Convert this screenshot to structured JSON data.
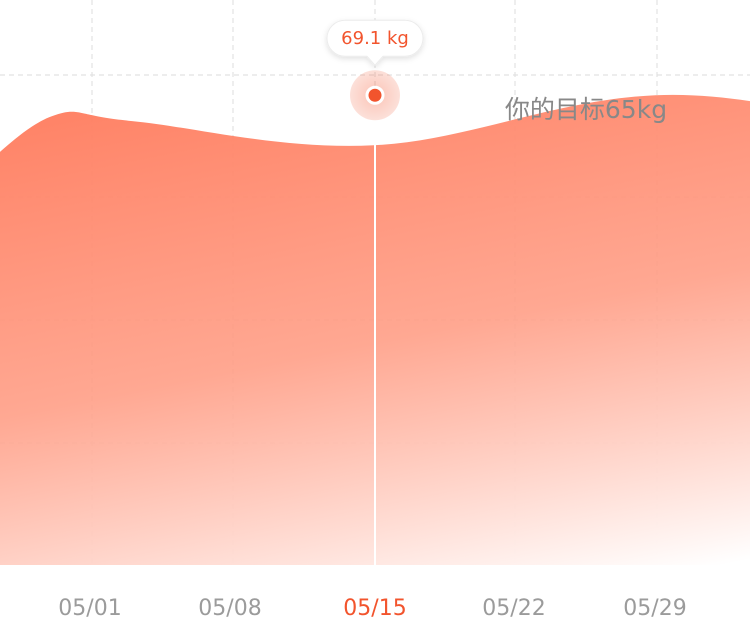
{
  "goal": {
    "label": "你的目标65kg"
  },
  "selected": {
    "tooltip": "69.1 kg",
    "x_label": "05/15"
  },
  "colors": {
    "area_top": "#FF7A5C",
    "area_bottom": "#FFFFFF",
    "accent": "#F2542D",
    "axis_text": "#9B9B9B",
    "goal_text": "#888888",
    "grid": "#E2E2E2"
  },
  "chart_data": {
    "type": "area",
    "title": "",
    "xlabel": "",
    "ylabel": "",
    "ylim": [
      40,
      75
    ],
    "grid": true,
    "categories": [
      "05/01",
      "05/08",
      "05/15",
      "05/22",
      "05/29"
    ],
    "series": [
      {
        "values": [
          [
            -3,
            64.0
          ],
          [
            -1,
            67.8
          ],
          [
            1,
            67.5
          ],
          [
            7,
            66.0
          ],
          [
            14,
            69.1
          ],
          [
            21,
            67.5
          ],
          [
            28,
            71.0
          ],
          [
            31,
            69.2
          ]
        ]
      }
    ],
    "highlight": {
      "x": "05/15",
      "y": 69.1,
      "label": "69.1 kg"
    },
    "annotations": [
      "你的目标65kg"
    ]
  }
}
